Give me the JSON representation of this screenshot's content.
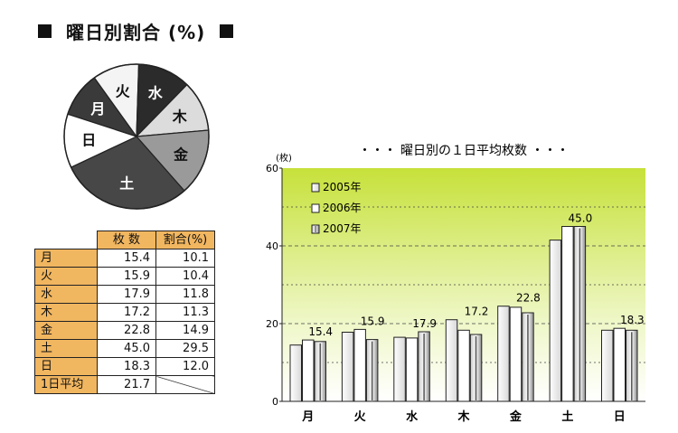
{
  "title": {
    "text": "曜日別割合 (%)"
  },
  "pie": {
    "labels": [
      "月",
      "火",
      "水",
      "木",
      "金",
      "土",
      "日"
    ],
    "values": [
      10.1,
      10.4,
      11.8,
      11.3,
      14.9,
      29.5,
      12.0
    ],
    "fills": [
      "#3a3a3a",
      "#f4f4f4",
      "#2b2b2b",
      "#dcdcdc",
      "#9a9a9a",
      "#474747",
      "#ffffff"
    ],
    "label_colors": [
      "#ffffff",
      "#111111",
      "#ffffff",
      "#111111",
      "#111111",
      "#ffffff",
      "#111111"
    ]
  },
  "table": {
    "headers": [
      "枚 数",
      "割合(%)"
    ],
    "rows": [
      {
        "day": "月",
        "count": "15.4",
        "pct": "10.1"
      },
      {
        "day": "火",
        "count": "15.9",
        "pct": "10.4"
      },
      {
        "day": "水",
        "count": "17.9",
        "pct": "11.8"
      },
      {
        "day": "木",
        "count": "17.2",
        "pct": "11.3"
      },
      {
        "day": "金",
        "count": "22.8",
        "pct": "14.9"
      },
      {
        "day": "土",
        "count": "45.0",
        "pct": "29.5"
      },
      {
        "day": "日",
        "count": "18.3",
        "pct": "12.0"
      }
    ],
    "footer": {
      "day": "1日平均",
      "count": "21.7"
    },
    "header_color": "#f1b660"
  },
  "chart_data": {
    "type": "bar",
    "title": "・・・ 曜日別の１日平均枚数 ・・・",
    "ylabel": "(枚)",
    "ylim": [
      0,
      60
    ],
    "yticks": [
      0,
      20,
      40,
      60
    ],
    "categories": [
      "月",
      "火",
      "水",
      "木",
      "金",
      "土",
      "日"
    ],
    "series": [
      {
        "name": "2005年",
        "values": [
          14.5,
          17.8,
          16.5,
          21.0,
          24.5,
          41.5,
          18.3
        ]
      },
      {
        "name": "2006年",
        "values": [
          15.8,
          18.5,
          16.3,
          18.3,
          24.2,
          45.0,
          18.8
        ]
      },
      {
        "name": "2007年",
        "values": [
          15.4,
          15.9,
          17.9,
          17.2,
          22.8,
          45.0,
          18.3
        ]
      }
    ],
    "value_labels": [
      "15.4",
      "15.9",
      "17.9",
      "17.2",
      "22.8",
      "45.0",
      "18.3"
    ],
    "grid": true,
    "legend": "top-left",
    "background_top": "#c7e13a",
    "background_bottom": "#ffffff"
  }
}
